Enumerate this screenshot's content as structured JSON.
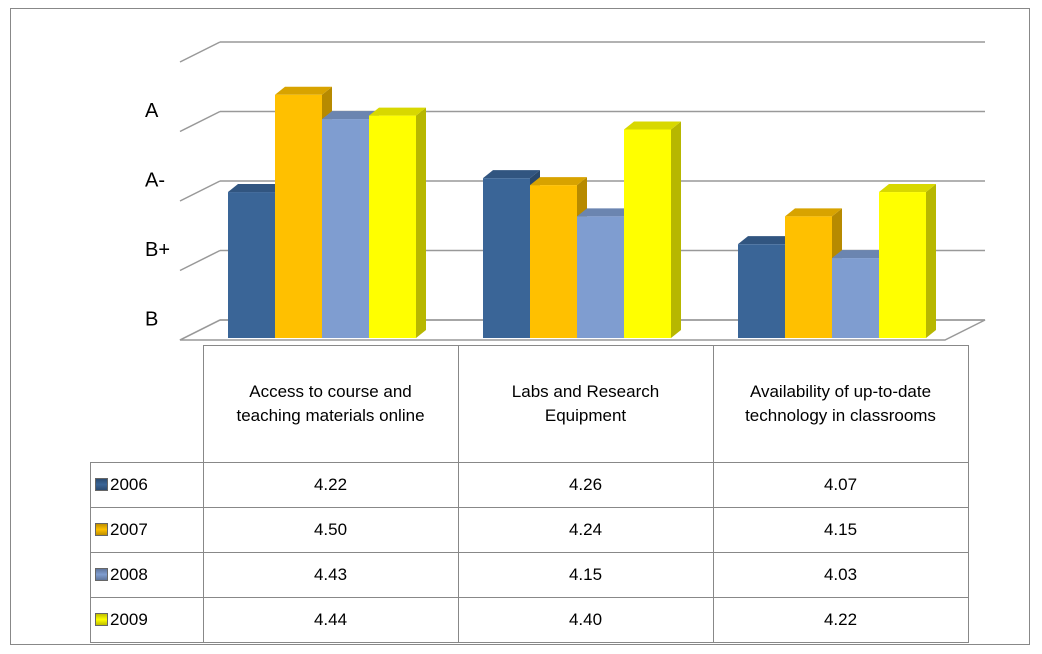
{
  "chart_data": {
    "type": "bar3d",
    "categories": [
      "Access to course and teaching materials online",
      "Labs and Research Equipment",
      "Availability of up-to-date technology in classrooms"
    ],
    "series": [
      {
        "name": "2006",
        "color": "#3a6597",
        "values": [
          4.22,
          4.26,
          4.07
        ],
        "value_labels": [
          "4.22",
          "4.26",
          "4.07"
        ]
      },
      {
        "name": "2007",
        "color": "#ffc000",
        "values": [
          4.5,
          4.24,
          4.15
        ],
        "value_labels": [
          "4.50",
          "4.24",
          "4.15"
        ]
      },
      {
        "name": "2008",
        "color": "#7f9dd0",
        "values": [
          4.43,
          4.15,
          4.03
        ],
        "value_labels": [
          "4.43",
          "4.15",
          "4.03"
        ]
      },
      {
        "name": "2009",
        "color": "#ffff00",
        "values": [
          4.44,
          4.4,
          4.22
        ],
        "value_labels": [
          "4.44",
          "4.40",
          "4.22"
        ]
      }
    ],
    "ylim": [
      3.8,
      4.6
    ],
    "yticks": [
      {
        "value": 3.8,
        "label": "B"
      },
      {
        "value": 4.0,
        "label": "B+"
      },
      {
        "value": 4.2,
        "label": "A-"
      },
      {
        "value": 4.4,
        "label": "A"
      }
    ],
    "grid": true
  }
}
